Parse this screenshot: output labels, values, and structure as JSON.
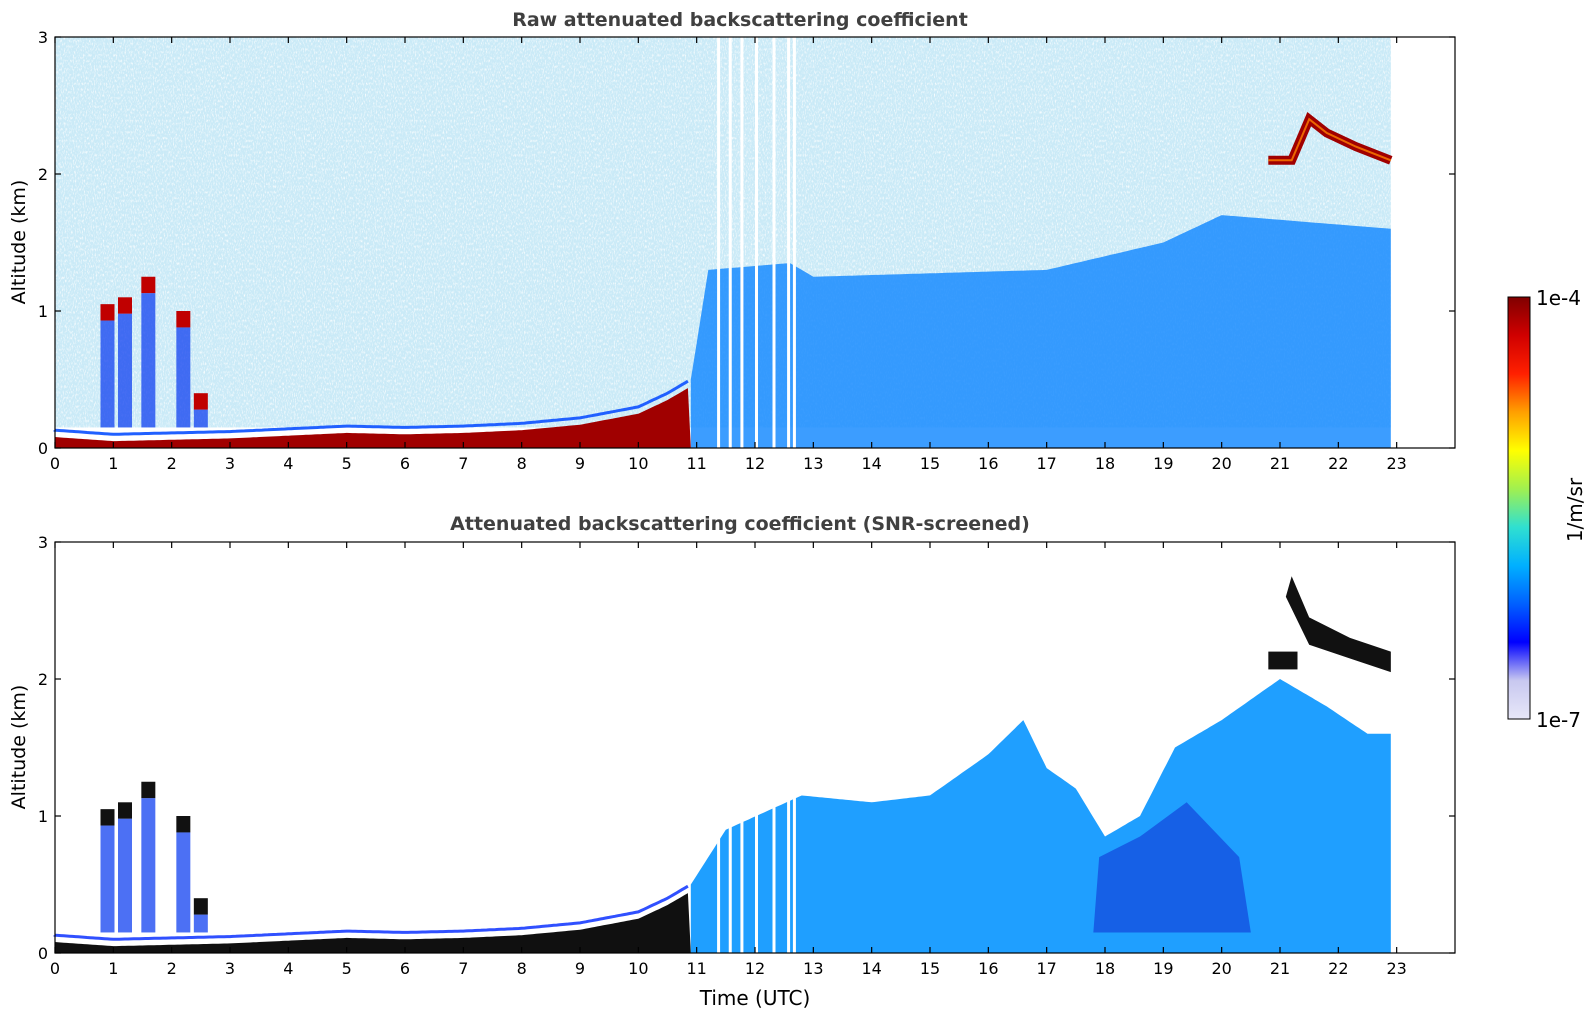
{
  "figure": {
    "xlabel": "Time (UTC)"
  },
  "colorbar": {
    "label": "1/m/sr",
    "top_label": "1e-4",
    "bottom_label": "1e-7",
    "scale": "log",
    "range": [
      1e-07,
      0.0001
    ],
    "colormap": "jet",
    "colors": [
      "#e8e8f8",
      "#c8c8f0",
      "#0000ff",
      "#0060ff",
      "#00b0ff",
      "#30e0d0",
      "#a0f050",
      "#ffff00",
      "#ffa000",
      "#ff2000",
      "#d00000",
      "#800000"
    ]
  },
  "chart_data": [
    {
      "type": "heatmap",
      "title": "Raw attenuated backscattering coefficient",
      "xlabel": "",
      "ylabel": "Altitude (km)",
      "xlim": [
        0,
        24
      ],
      "ylim": [
        0,
        3
      ],
      "xticks": [
        "0",
        "1",
        "2",
        "3",
        "4",
        "5",
        "6",
        "7",
        "8",
        "9",
        "10",
        "11",
        "12",
        "13",
        "14",
        "15",
        "16",
        "17",
        "18",
        "19",
        "20",
        "21",
        "22",
        "23"
      ],
      "yticks": [
        "0",
        "1",
        "2",
        "3"
      ],
      "data_end_hour": 22.9,
      "features": {
        "boundary_layer_top_km": [
          [
            0,
            0.08
          ],
          [
            1,
            0.05
          ],
          [
            2,
            0.06
          ],
          [
            3,
            0.07
          ],
          [
            4,
            0.09
          ],
          [
            5,
            0.11
          ],
          [
            6,
            0.1
          ],
          [
            7,
            0.11
          ],
          [
            8,
            0.13
          ],
          [
            9,
            0.17
          ],
          [
            10,
            0.25
          ],
          [
            10.5,
            0.35
          ],
          [
            10.9,
            0.45
          ]
        ],
        "low_clouds_km": [
          [
            0.9,
            0.95
          ],
          [
            1.2,
            1.0
          ],
          [
            1.6,
            1.15
          ],
          [
            2.2,
            0.9
          ],
          [
            2.5,
            0.3
          ]
        ],
        "upper_cloud_layer_km": [
          [
            20.8,
            2.1
          ],
          [
            21.2,
            2.1
          ],
          [
            21.5,
            2.4
          ],
          [
            21.8,
            2.3
          ],
          [
            22.3,
            2.2
          ],
          [
            22.9,
            2.1
          ]
        ]
      }
    },
    {
      "type": "heatmap",
      "title": "Attenuated backscattering coefficient (SNR-screened)",
      "xlabel": "Time (UTC)",
      "ylabel": "Altitude (km)",
      "xlim": [
        0,
        24
      ],
      "ylim": [
        0,
        3
      ],
      "xticks": [
        "0",
        "1",
        "2",
        "3",
        "4",
        "5",
        "6",
        "7",
        "8",
        "9",
        "10",
        "11",
        "12",
        "13",
        "14",
        "15",
        "16",
        "17",
        "18",
        "19",
        "20",
        "21",
        "22",
        "23"
      ],
      "yticks": [
        "0",
        "1",
        "2",
        "3"
      ],
      "data_end_hour": 22.9,
      "features": {
        "screened_signal_top_km": [
          [
            10.9,
            0.5
          ],
          [
            11.5,
            0.9
          ],
          [
            12.8,
            1.15
          ],
          [
            14,
            1.1
          ],
          [
            15,
            1.15
          ],
          [
            16,
            1.45
          ],
          [
            16.6,
            1.7
          ],
          [
            17,
            1.35
          ],
          [
            17.5,
            1.2
          ],
          [
            18,
            0.85
          ],
          [
            18.6,
            1.0
          ],
          [
            19.2,
            1.5
          ],
          [
            20,
            1.7
          ],
          [
            21,
            2.0
          ],
          [
            21.8,
            1.8
          ],
          [
            22.5,
            1.6
          ],
          [
            22.9,
            1.6
          ]
        ]
      }
    }
  ]
}
